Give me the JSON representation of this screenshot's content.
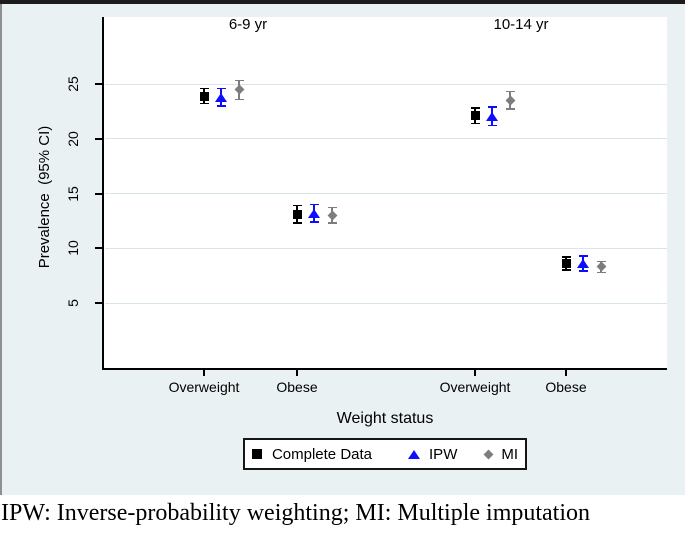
{
  "caption": "IPW: Inverse-probability weighting; MI: Multiple imputation",
  "chart_data": {
    "type": "scatter",
    "subtype": "point-estimates-with-95ci",
    "panels": [
      "6-9 yr",
      "10-14 yr"
    ],
    "categories": [
      "Overweight",
      "Obese",
      "Overweight",
      "Obese"
    ],
    "category_panel": [
      0,
      0,
      1,
      1
    ],
    "xlabel": "Weight status",
    "ylabel": "Prevalence  (95% CI)",
    "yticks": [
      5,
      10,
      15,
      20,
      25
    ],
    "ylim": [
      1.5,
      28.5
    ],
    "grid": true,
    "legend_position": "bottom",
    "colors": {
      "background": "#eaf1f2",
      "plot_background": "#ffffff",
      "gridline": "#d9e5e8",
      "axis": "#000000"
    },
    "series": [
      {
        "name": "Complete Data",
        "marker": "square",
        "color": "#000000",
        "values": [
          23.9,
          13.1,
          22.1,
          8.6
        ],
        "ci_low": [
          23.2,
          12.3,
          21.4,
          8.0
        ],
        "ci_high": [
          24.6,
          13.9,
          22.8,
          9.2
        ]
      },
      {
        "name": "IPW",
        "marker": "triangle",
        "color": "#0d0dff",
        "values": [
          23.8,
          13.2,
          22.0,
          8.6
        ],
        "ci_low": [
          23.0,
          12.4,
          21.2,
          7.9
        ],
        "ci_high": [
          24.6,
          14.0,
          22.9,
          9.3
        ]
      },
      {
        "name": "MI",
        "marker": "diamond",
        "color": "#7d7d7d",
        "values": [
          24.5,
          13.0,
          23.5,
          8.3
        ],
        "ci_low": [
          23.6,
          12.3,
          22.7,
          7.8
        ],
        "ci_high": [
          25.3,
          13.7,
          24.3,
          8.8
        ]
      }
    ]
  }
}
